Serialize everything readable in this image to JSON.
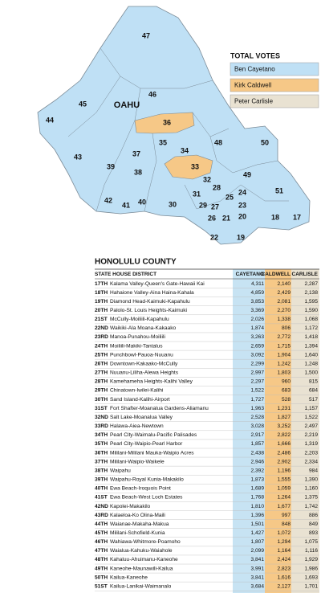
{
  "map": {
    "title": "OAHU",
    "districts": [
      {
        "label": "47"
      },
      {
        "label": "46"
      },
      {
        "label": "45"
      },
      {
        "label": "44"
      },
      {
        "label": "36"
      },
      {
        "label": "43"
      },
      {
        "label": "37"
      },
      {
        "label": "35"
      },
      {
        "label": "34"
      },
      {
        "label": "48"
      },
      {
        "label": "50"
      },
      {
        "label": "39"
      },
      {
        "label": "38"
      },
      {
        "label": "33"
      },
      {
        "label": "42"
      },
      {
        "label": "41"
      },
      {
        "label": "40"
      },
      {
        "label": "30"
      },
      {
        "label": "31"
      },
      {
        "label": "32"
      },
      {
        "label": "28"
      },
      {
        "label": "29"
      },
      {
        "label": "27"
      },
      {
        "label": "25"
      },
      {
        "label": "24"
      },
      {
        "label": "49"
      },
      {
        "label": "51"
      },
      {
        "label": "26"
      },
      {
        "label": "21"
      },
      {
        "label": "23"
      },
      {
        "label": "20"
      },
      {
        "label": "22"
      },
      {
        "label": "19"
      },
      {
        "label": "18"
      },
      {
        "label": "17"
      }
    ]
  },
  "legend": {
    "title": "TOTAL VOTES",
    "items": [
      "Ben Cayetano",
      "Kirk Caldwell",
      "Peter Carlisle"
    ]
  },
  "table": {
    "title": "HONOLULU COUNTY",
    "columns": [
      "STATE HOUSE DISTRICT",
      "CAYETANO",
      "CALDWELL",
      "CARLISLE"
    ],
    "rows": [
      [
        "17TH",
        "Kalama Valley-Queen's Gate-Hawaii Kai",
        "4,311",
        "2,140",
        "2,287"
      ],
      [
        "18TH",
        "Hahaione Valley-Aina Haina-Kahala",
        "4,859",
        "2,429",
        "2,138"
      ],
      [
        "19TH",
        "Diamond Head-Kaimuki-Kapahulu",
        "3,853",
        "2,081",
        "1,595"
      ],
      [
        "20TH",
        "Palolo-St. Louis Heights-Kaimuki",
        "3,369",
        "2,270",
        "1,590"
      ],
      [
        "21ST",
        "McCully-Moiliili-Kapahulu",
        "2,026",
        "1,338",
        "1,068"
      ],
      [
        "22ND",
        "Waikiki-Ala Moana-Kakaako",
        "1,874",
        "806",
        "1,172"
      ],
      [
        "23RD",
        "Manoa-Punahou-Moiliili",
        "3,263",
        "2,772",
        "1,418"
      ],
      [
        "24TH",
        "Moiliili-Makiki-Tantalus",
        "2,659",
        "1,715",
        "1,394"
      ],
      [
        "25TH",
        "Punchbowl-Pauoa-Nuuanu",
        "3,092",
        "1,904",
        "1,640"
      ],
      [
        "26TH",
        "Downtown-Kakaako-McCully",
        "2,299",
        "1,242",
        "1,248"
      ],
      [
        "27TH",
        "Nuuanu-Liliha-Alewa Heights",
        "2,997",
        "1,803",
        "1,500"
      ],
      [
        "28TH",
        "Kamehameha Heights-Kalihi Valley",
        "2,297",
        "960",
        "815"
      ],
      [
        "29TH",
        "Chinatown-Iwilei-Kalihi",
        "1,522",
        "683",
        "684"
      ],
      [
        "30TH",
        "Sand Island-Kalihi-Airport",
        "1,727",
        "528",
        "517"
      ],
      [
        "31ST",
        "Fort Shafter-Moanalua Gardens-Aliamanu",
        "1,963",
        "1,231",
        "1,157"
      ],
      [
        "32ND",
        "Salt Lake-Moanalua Valley",
        "2,528",
        "1,827",
        "1,522"
      ],
      [
        "33RD",
        "Halawa-Aiea-Newtown",
        "3,028",
        "3,252",
        "2,497"
      ],
      [
        "34TH",
        "Pearl City-Waimalu-Pacific Palisades",
        "2,917",
        "2,822",
        "2,219"
      ],
      [
        "35TH",
        "Pearl City-Waipio-Pearl Harbor",
        "1,857",
        "1,666",
        "1,319"
      ],
      [
        "36TH",
        "Mililani-Mililani Mauka-Waipio Acres",
        "2,438",
        "2,486",
        "2,203"
      ],
      [
        "37TH",
        "Mililani-Waipio-Waikele",
        "2,946",
        "2,902",
        "2,334"
      ],
      [
        "38TH",
        "Waipahu",
        "2,392",
        "1,196",
        "984"
      ],
      [
        "39TH",
        "Waipahu-Royal Kunia-Makakilo",
        "1,873",
        "1,555",
        "1,390"
      ],
      [
        "40TH",
        "Ewa Beach-Iroquois Point",
        "1,689",
        "1,059",
        "1,160"
      ],
      [
        "41ST",
        "Ewa Beach-West Loch Estates",
        "1,768",
        "1,264",
        "1,375"
      ],
      [
        "42ND",
        "Kapolei-Makakilo",
        "1,810",
        "1,677",
        "1,742"
      ],
      [
        "43RD",
        "Kalaeloa-Ko Olina-Maili",
        "1,396",
        "997",
        "886"
      ],
      [
        "44TH",
        "Waianae-Makaha-Makua",
        "1,501",
        "848",
        "849"
      ],
      [
        "45TH",
        "Mililani-Schofield-Kunia",
        "1,427",
        "1,072",
        "893"
      ],
      [
        "46TH",
        "Wahiawa-Whitmore-Poamoho",
        "1,807",
        "1,294",
        "1,075"
      ],
      [
        "47TH",
        "Waialua-Kahuku-Waiahole",
        "2,099",
        "1,164",
        "1,116"
      ],
      [
        "48TH",
        "Kahaluu-Ahuimanu-Kaneohe",
        "3,841",
        "2,424",
        "1,929"
      ],
      [
        "49TH",
        "Kaneohe-Maunawili-Kailua",
        "3,991",
        "2,823",
        "1,986"
      ],
      [
        "50TH",
        "Kailua-Kaneohe",
        "3,841",
        "1,616",
        "1,693"
      ],
      [
        "51ST",
        "Kailua-Lanikai-Waimanalo",
        "3,684",
        "2,127",
        "1,701"
      ]
    ]
  }
}
